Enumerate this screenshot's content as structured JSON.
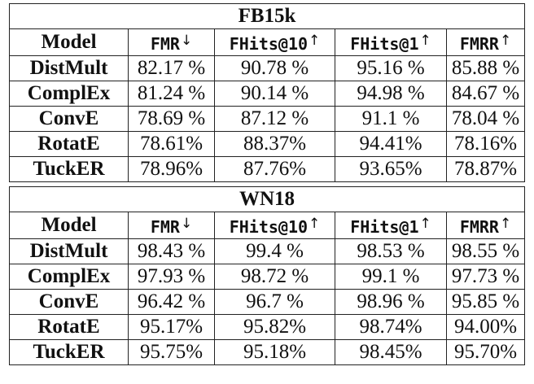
{
  "sections": [
    {
      "title": "FB15k",
      "headers": {
        "model": "Model",
        "metrics": [
          {
            "label": "FMR",
            "arrow": "↓"
          },
          {
            "label": "FHits@10",
            "arrow": "↑"
          },
          {
            "label": "FHits@1",
            "arrow": "↑"
          },
          {
            "label": "FMRR",
            "arrow": "↑"
          }
        ]
      },
      "rows": [
        {
          "model": "DistMult",
          "values": [
            "82.17 %",
            "90.78 %",
            "95.16 %",
            "85.88 %"
          ]
        },
        {
          "model": "ComplEx",
          "values": [
            "81.24 %",
            "90.14 %",
            "94.98 %",
            "84.67 %"
          ]
        },
        {
          "model": "ConvE",
          "values": [
            "78.69 %",
            "87.12 %",
            "91.1 %",
            "78.04 %"
          ]
        },
        {
          "model": "RotatE",
          "values": [
            "78.61%",
            "88.37%",
            "94.41%",
            "78.16%"
          ]
        },
        {
          "model": "TuckER",
          "values": [
            "78.96%",
            "87.76%",
            "93.65%",
            "78.87%"
          ]
        }
      ]
    },
    {
      "title": "WN18",
      "headers": {
        "model": "Model",
        "metrics": [
          {
            "label": "FMR",
            "arrow": "↓"
          },
          {
            "label": "FHits@10",
            "arrow": "↑"
          },
          {
            "label": "FHits@1",
            "arrow": "↑"
          },
          {
            "label": "FMRR",
            "arrow": "↑"
          }
        ]
      },
      "rows": [
        {
          "model": "DistMult",
          "values": [
            "98.43 %",
            "99.4 %",
            "98.53 %",
            "98.55 %"
          ]
        },
        {
          "model": "ComplEx",
          "values": [
            "97.93 %",
            "98.72 %",
            "99.1 %",
            "97.73 %"
          ]
        },
        {
          "model": "ConvE",
          "values": [
            "96.42 %",
            "96.7 %",
            "98.96 %",
            "95.85 %"
          ]
        },
        {
          "model": "RotatE",
          "values": [
            "95.17%",
            "95.82%",
            "98.74%",
            "94.00%"
          ]
        },
        {
          "model": "TuckER",
          "values": [
            "95.75%",
            "95.18%",
            "98.45%",
            "95.70%"
          ]
        }
      ]
    }
  ]
}
